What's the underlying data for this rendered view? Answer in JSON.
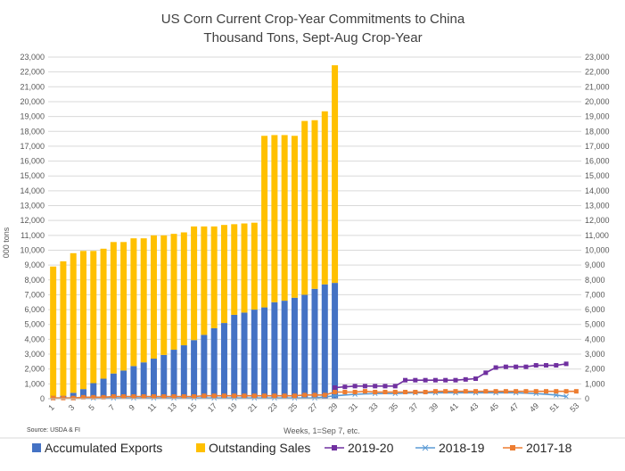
{
  "chart_data": {
    "type": "bar",
    "title": "US Corn Current Crop-Year Commitments to China",
    "subtitle": "Thousand Tons, Sept-Aug Crop-Year",
    "ylabel": "000 tons",
    "xlabel": "Weeks, 1=Sep 7, etc.",
    "source": "Source: USDA & FI",
    "ylim": [
      0,
      23000
    ],
    "ytick_step": 1000,
    "grid": true,
    "legend_position": "bottom",
    "x_ticks": [
      1,
      3,
      5,
      7,
      9,
      11,
      13,
      15,
      17,
      19,
      21,
      23,
      25,
      27,
      29,
      31,
      33,
      35,
      37,
      39,
      41,
      43,
      45,
      47,
      49,
      51,
      53
    ],
    "bar_weeks": [
      1,
      2,
      3,
      4,
      5,
      6,
      7,
      8,
      9,
      10,
      11,
      12,
      13,
      14,
      15,
      16,
      17,
      18,
      19,
      20,
      21,
      22,
      23,
      24,
      25,
      26,
      27,
      28,
      29
    ],
    "bar_series": [
      {
        "name": "Accumulated Exports",
        "color": "#4472C4",
        "values": [
          50,
          200,
          400,
          650,
          1050,
          1350,
          1700,
          1900,
          2200,
          2450,
          2700,
          2950,
          3300,
          3600,
          3950,
          4300,
          4750,
          5100,
          5650,
          5800,
          6000,
          6150,
          6500,
          6600,
          6800,
          7000,
          7400,
          7700,
          7800
        ]
      },
      {
        "name": "Outstanding Sales",
        "color": "#FFC000",
        "values": [
          8850,
          9050,
          9400,
          9300,
          8900,
          8750,
          8850,
          8650,
          8600,
          8350,
          8300,
          8050,
          7800,
          7600,
          7650,
          7300,
          6850,
          6600,
          6100,
          6000,
          5850,
          11550,
          11250,
          11150,
          10900,
          11700,
          11350,
          11650,
          14650
        ]
      }
    ],
    "line_series": [
      {
        "name": "2019-20",
        "color": "#7030A0",
        "marker": "square",
        "x": [
          29,
          30,
          31,
          32,
          33,
          34,
          35,
          36,
          37,
          38,
          39,
          40,
          41,
          42,
          43,
          44,
          45,
          46,
          47,
          48,
          49,
          50,
          51,
          52
        ],
        "values": [
          750,
          800,
          850,
          850,
          850,
          850,
          850,
          1250,
          1250,
          1250,
          1250,
          1250,
          1250,
          1300,
          1350,
          1750,
          2100,
          2150,
          2150,
          2150,
          2250,
          2250,
          2250,
          2350
        ]
      },
      {
        "name": "2018-19",
        "color": "#5B9BD5",
        "marker": "x",
        "x": [
          1,
          3,
          5,
          7,
          9,
          11,
          13,
          15,
          17,
          19,
          21,
          23,
          25,
          27,
          29,
          31,
          33,
          35,
          37,
          39,
          41,
          43,
          45,
          47,
          49,
          51,
          52
        ],
        "values": [
          50,
          50,
          50,
          50,
          50,
          50,
          50,
          50,
          50,
          50,
          50,
          50,
          50,
          50,
          200,
          300,
          350,
          350,
          400,
          400,
          400,
          400,
          400,
          400,
          350,
          250,
          150
        ]
      },
      {
        "name": "2017-18",
        "color": "#ED7D31",
        "marker": "square",
        "x": [
          1,
          2,
          3,
          4,
          5,
          6,
          7,
          8,
          9,
          10,
          11,
          12,
          13,
          14,
          15,
          16,
          17,
          18,
          19,
          20,
          21,
          22,
          23,
          24,
          25,
          26,
          27,
          28,
          29,
          30,
          31,
          32,
          33,
          34,
          35,
          36,
          37,
          38,
          39,
          40,
          41,
          42,
          43,
          44,
          45,
          46,
          47,
          48,
          49,
          50,
          51,
          52,
          53
        ],
        "values": [
          50,
          50,
          50,
          100,
          100,
          100,
          150,
          150,
          150,
          150,
          150,
          150,
          150,
          150,
          150,
          200,
          200,
          200,
          200,
          200,
          200,
          200,
          200,
          200,
          200,
          250,
          250,
          250,
          450,
          450,
          450,
          500,
          450,
          450,
          450,
          450,
          450,
          450,
          500,
          500,
          500,
          500,
          500,
          500,
          500,
          500,
          500,
          500,
          500,
          500,
          500,
          500,
          500
        ]
      }
    ]
  }
}
